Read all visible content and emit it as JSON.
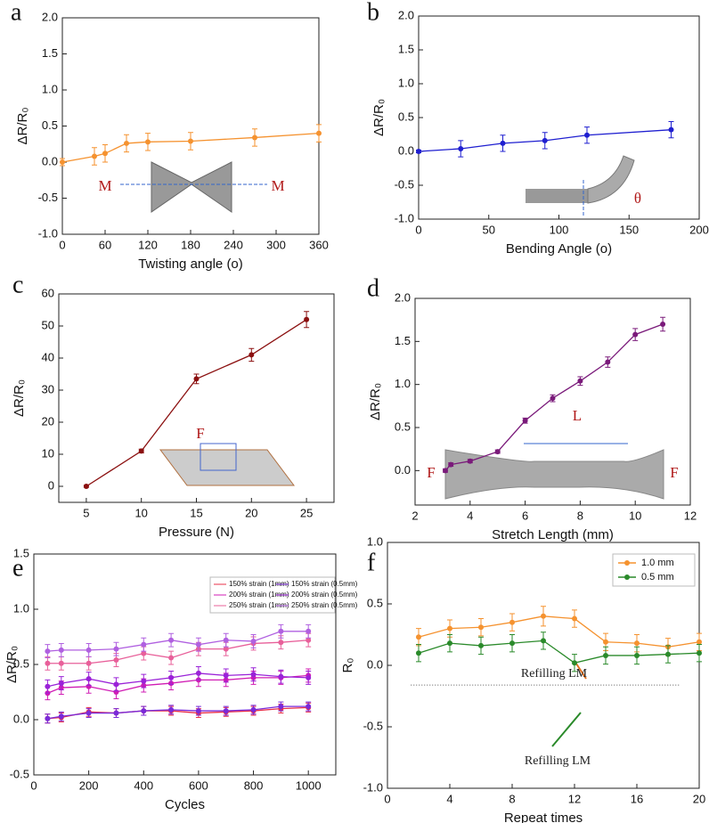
{
  "chart_data": [
    {
      "type": "line",
      "label": "a",
      "x_label": "Twisting angle (o)",
      "y_label": "ΔR/R₀",
      "x": [
        0,
        45,
        60,
        90,
        120,
        180,
        270,
        360
      ],
      "series": [
        {
          "color": "#f5922f",
          "values": [
            0,
            0.08,
            0.12,
            0.26,
            0.28,
            0.29,
            0.34,
            0.4
          ],
          "errors": [
            0.05,
            0.12,
            0.12,
            0.12,
            0.12,
            0.12,
            0.12,
            0.12
          ]
        }
      ],
      "xlim": [
        0,
        360
      ],
      "xticks": [
        0,
        60,
        120,
        180,
        240,
        300,
        360
      ],
      "ylim": [
        -1,
        2
      ],
      "yticks": [
        {
          "value": -1,
          "label": "-1.0"
        },
        -0.5,
        {
          "value": 0,
          "label": "0.0"
        },
        0.5,
        {
          "value": 1,
          "label": "1.0"
        },
        1.5,
        {
          "value": 2,
          "label": "2.0"
        }
      ],
      "annotations": [
        "M",
        "M"
      ]
    },
    {
      "type": "line",
      "label": "b",
      "x_label": "Bending Angle (o)",
      "y_label": "ΔR/R₀",
      "x": [
        0,
        30,
        60,
        90,
        120,
        180
      ],
      "series": [
        {
          "color": "#1f1fd0",
          "values": [
            0,
            0.04,
            0.12,
            0.16,
            0.24,
            0.32
          ],
          "errors": [
            0.02,
            0.12,
            0.12,
            0.12,
            0.12,
            0.12
          ]
        }
      ],
      "xlim": [
        0,
        200
      ],
      "xticks": [
        0,
        50,
        100,
        150,
        200
      ],
      "ylim": [
        -1,
        2
      ],
      "yticks": [
        {
          "value": -1,
          "label": "-1.0"
        },
        -0.5,
        {
          "value": 0,
          "label": "0.0"
        },
        0.5,
        {
          "value": 1,
          "label": "1.0"
        },
        1.5,
        {
          "value": 2,
          "label": "2.0"
        }
      ],
      "annotations": [
        "θ"
      ]
    },
    {
      "type": "line",
      "label": "c",
      "x_label": "Pressure (N)",
      "y_label": "ΔR/R₀",
      "x": [
        5,
        10,
        15,
        20,
        25
      ],
      "series": [
        {
          "color": "#8b1010",
          "values": [
            0,
            11,
            33.5,
            41,
            52
          ],
          "errors": [
            0.3,
            0.6,
            1.5,
            2,
            2.5
          ]
        }
      ],
      "xlim": [
        2.5,
        27.5
      ],
      "xticks": [
        5,
        10,
        15,
        20,
        25
      ],
      "ylim": [
        -5,
        60
      ],
      "yticks": [
        0,
        10,
        20,
        30,
        40,
        50,
        60
      ],
      "annotations": [
        "F"
      ]
    },
    {
      "type": "line",
      "label": "d",
      "x_label": "Stretch Length (mm)",
      "y_label": "ΔR/R₀",
      "x": [
        3.1,
        3.3,
        4,
        5,
        6,
        7,
        8,
        9,
        10,
        11
      ],
      "series": [
        {
          "color": "#7a1a7a",
          "values": [
            0,
            0.07,
            0.11,
            0.22,
            0.58,
            0.84,
            1.04,
            1.26,
            1.58,
            1.7
          ],
          "errors": [
            0.02,
            0.02,
            0.02,
            0.02,
            0.03,
            0.04,
            0.05,
            0.06,
            0.07,
            0.08
          ]
        }
      ],
      "xlim": [
        2,
        12
      ],
      "xticks": [
        2,
        4,
        6,
        8,
        10,
        12
      ],
      "ylim": [
        -0.4,
        2
      ],
      "yticks": [
        {
          "value": 0,
          "label": "0.0"
        },
        0.5,
        {
          "value": 1,
          "label": "1.0"
        },
        1.5,
        {
          "value": 2,
          "label": "2.0"
        }
      ],
      "annotations": [
        "L",
        "F",
        "F"
      ]
    },
    {
      "type": "line",
      "label": "e",
      "x_label": "Cycles",
      "y_label": "ΔR/R₀",
      "x": [
        50,
        100,
        200,
        300,
        400,
        500,
        600,
        700,
        800,
        900,
        1000
      ],
      "series": [
        {
          "name": "150% strain (1mm)",
          "color": "#e8304a",
          "values": [
            0.01,
            0.02,
            0.07,
            0.06,
            0.08,
            0.08,
            0.06,
            0.07,
            0.08,
            0.1,
            0.11
          ],
          "errors": [
            0.04,
            0.04,
            0.04,
            0.04,
            0.04,
            0.04,
            0.04,
            0.04,
            0.04,
            0.04,
            0.04
          ]
        },
        {
          "name": "150% strain (0.5mm)",
          "color": "#7a2ad8",
          "values": [
            0.01,
            0.03,
            0.06,
            0.06,
            0.08,
            0.09,
            0.08,
            0.08,
            0.09,
            0.12,
            0.12
          ],
          "errors": [
            0.04,
            0.04,
            0.04,
            0.04,
            0.04,
            0.04,
            0.04,
            0.04,
            0.04,
            0.04,
            0.04
          ]
        },
        {
          "name": "200% strain (1mm)",
          "color": "#d01cb4",
          "values": [
            0.24,
            0.29,
            0.3,
            0.25,
            0.31,
            0.33,
            0.36,
            0.36,
            0.38,
            0.38,
            0.4
          ],
          "errors": [
            0.06,
            0.06,
            0.06,
            0.06,
            0.06,
            0.06,
            0.06,
            0.06,
            0.06,
            0.06,
            0.06
          ]
        },
        {
          "name": "200% strain (0.5mm)",
          "color": "#9a22d8",
          "values": [
            0.3,
            0.33,
            0.37,
            0.32,
            0.35,
            0.38,
            0.42,
            0.4,
            0.41,
            0.39,
            0.38
          ],
          "errors": [
            0.06,
            0.06,
            0.06,
            0.06,
            0.06,
            0.06,
            0.06,
            0.06,
            0.06,
            0.06,
            0.06
          ]
        },
        {
          "name": "250% strain (1mm)",
          "color": "#e8609a",
          "values": [
            0.51,
            0.51,
            0.51,
            0.54,
            0.6,
            0.56,
            0.64,
            0.64,
            0.69,
            0.7,
            0.72
          ],
          "errors": [
            0.06,
            0.06,
            0.06,
            0.06,
            0.06,
            0.06,
            0.06,
            0.06,
            0.06,
            0.06,
            0.06
          ]
        },
        {
          "name": "250% strain (0.5mm)",
          "color": "#b060e0",
          "values": [
            0.62,
            0.63,
            0.63,
            0.64,
            0.68,
            0.72,
            0.68,
            0.72,
            0.71,
            0.8,
            0.8
          ],
          "errors": [
            0.06,
            0.06,
            0.06,
            0.06,
            0.06,
            0.06,
            0.06,
            0.06,
            0.06,
            0.06,
            0.06
          ]
        }
      ],
      "xlim": [
        0,
        1100
      ],
      "xticks": [
        0,
        200,
        400,
        600,
        800,
        1000
      ],
      "ylim": [
        -0.5,
        1.5
      ],
      "yticks": [
        -0.5,
        {
          "value": 0,
          "label": "0.0"
        },
        0.5,
        {
          "value": 1,
          "label": "1.0"
        },
        1.5
      ],
      "legend": "upper right"
    },
    {
      "type": "line",
      "label": "f",
      "x_label": "Repeat times",
      "y_label": "R₀",
      "x": [
        2,
        4,
        6,
        8,
        10,
        12,
        14,
        16,
        18,
        20
      ],
      "series": [
        {
          "name": "1.0 mm",
          "color": "#f5922f",
          "values": [
            0.23,
            0.3,
            0.31,
            0.35,
            0.4,
            0.38,
            0.19,
            0.18,
            0.15,
            0.19
          ],
          "errors": [
            0.07,
            0.07,
            0.07,
            0.07,
            0.08,
            0.07,
            0.07,
            0.07,
            0.07,
            0.07
          ]
        },
        {
          "name": "0.5 mm",
          "color": "#2a8a2a",
          "values": [
            0.1,
            0.18,
            0.16,
            0.18,
            0.2,
            0.02,
            0.08,
            0.08,
            0.09,
            0.1
          ],
          "errors": [
            0.07,
            0.07,
            0.07,
            0.07,
            0.07,
            0.07,
            0.07,
            0.07,
            0.07,
            0.07
          ]
        }
      ],
      "xlim": [
        0,
        20
      ],
      "xticks": [
        0,
        4,
        8,
        12,
        16,
        20
      ],
      "ylim": [
        -1,
        1
      ],
      "yticks": [
        {
          "value": -1,
          "label": "-1.0"
        },
        -0.5,
        {
          "value": 0,
          "label": "0.0"
        },
        0.5,
        {
          "value": 1,
          "label": "1.0"
        }
      ],
      "reference_line": -0.16,
      "legend": "upper right",
      "annotations": [
        "Refilling LM",
        "Refilling LM"
      ]
    }
  ]
}
